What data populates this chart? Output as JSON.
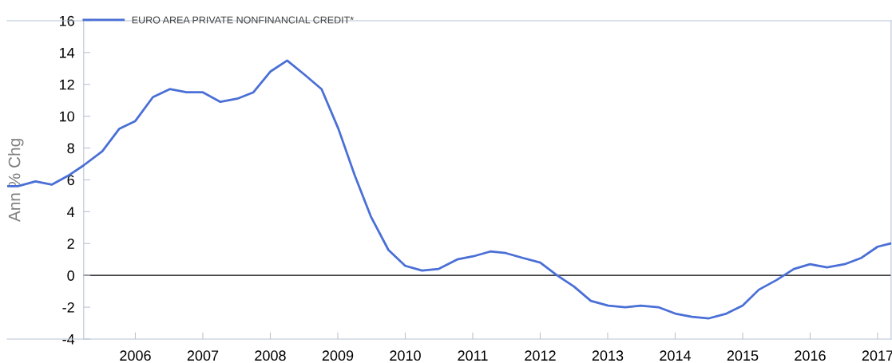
{
  "chart_data": {
    "type": "line",
    "ylabel": "Ann % Chg",
    "xlim": [
      2004.1,
      2017.2
    ],
    "ylim": [
      -4,
      16
    ],
    "xticks": [
      {
        "value": 2006,
        "label": "2006"
      },
      {
        "value": 2007,
        "label": "2007"
      },
      {
        "value": 2008,
        "label": "2008"
      },
      {
        "value": 2009,
        "label": "2009"
      },
      {
        "value": 2010,
        "label": "2010"
      },
      {
        "value": 2011,
        "label": "2011"
      },
      {
        "value": 2012,
        "label": "2012"
      },
      {
        "value": 2013,
        "label": "2013"
      },
      {
        "value": 2014,
        "label": "2014"
      },
      {
        "value": 2015,
        "label": "2015"
      },
      {
        "value": 2016,
        "label": "2016"
      },
      {
        "value": 2017,
        "label": "2017"
      }
    ],
    "yticks": [
      -4,
      -2,
      0,
      2,
      4,
      6,
      8,
      10,
      12,
      14,
      16
    ],
    "grid": false,
    "legend": "top left",
    "marker": "none",
    "line_style": "solid",
    "ref_lines": [
      {
        "axis": "y",
        "value": 0,
        "color": "#000000"
      }
    ],
    "series": [
      {
        "name": "EURO AREA PRIVATE NONFINANCIAL CREDIT*",
        "color": "#4a6fd6",
        "x": [
          2004.11,
          2004.26,
          2004.52,
          2004.76,
          2005.02,
          2005.23,
          2005.51,
          2005.76,
          2006.0,
          2006.26,
          2006.51,
          2006.76,
          2007.0,
          2007.26,
          2007.51,
          2007.75,
          2008.0,
          2008.25,
          2008.51,
          2008.76,
          2009.01,
          2009.25,
          2009.49,
          2009.75,
          2010.0,
          2010.25,
          2010.49,
          2010.77,
          2011.01,
          2011.26,
          2011.49,
          2011.74,
          2012.0,
          2012.25,
          2012.5,
          2012.75,
          2013.01,
          2013.26,
          2013.49,
          2013.75,
          2014.0,
          2014.25,
          2014.5,
          2014.76,
          2015.0,
          2015.24,
          2015.5,
          2015.76,
          2016.0,
          2016.25,
          2016.51,
          2016.76,
          2017.0,
          2017.19
        ],
        "values": [
          5.6,
          5.6,
          5.9,
          5.7,
          6.3,
          6.9,
          7.8,
          9.2,
          9.7,
          11.2,
          11.7,
          11.5,
          11.5,
          10.9,
          11.1,
          11.5,
          12.8,
          13.5,
          12.6,
          11.7,
          9.2,
          6.3,
          3.7,
          1.6,
          0.6,
          0.3,
          0.4,
          1.0,
          1.2,
          1.5,
          1.4,
          1.1,
          0.8,
          0.0,
          -0.7,
          -1.6,
          -1.9,
          -2.0,
          -1.9,
          -2.0,
          -2.4,
          -2.6,
          -2.7,
          -2.4,
          -1.9,
          -0.9,
          -0.3,
          0.4,
          0.7,
          0.5,
          0.7,
          1.1,
          1.8,
          2.0
        ]
      }
    ]
  }
}
